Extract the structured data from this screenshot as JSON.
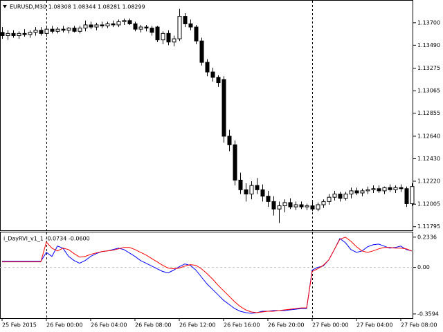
{
  "chart_data": [
    {
      "type": "candlestick",
      "title": "EURUSD,M30 1.08308 1.08344 1.08281 1.08299",
      "open": [
        1.1361,
        1.1358,
        1.136,
        1.1358,
        1.136,
        1.1359,
        1.1361,
        1.1363,
        1.136,
        1.1364,
        1.1362,
        1.1364,
        1.1363,
        1.1365,
        1.1362,
        1.1365,
        1.1368,
        1.1366,
        1.1368,
        1.1367,
        1.1369,
        1.1368,
        1.1371,
        1.1372,
        1.1369,
        1.1364,
        1.1366,
        1.1365,
        1.1366,
        1.1354,
        1.136,
        1.1352,
        1.1355,
        1.1376,
        1.1369,
        1.1366,
        1.1353,
        1.1333,
        1.1324,
        1.1319,
        1.1317,
        1.1264,
        1.1256,
        1.1223,
        1.1214,
        1.121,
        1.1218,
        1.1214,
        1.1208,
        1.1203,
        1.1196,
        1.1199,
        1.1202,
        1.1198,
        1.12,
        1.1198,
        1.1199,
        1.1196,
        1.12,
        1.1203,
        1.1207,
        1.121,
        1.1206,
        1.121,
        1.1213,
        1.1211,
        1.1213,
        1.1214,
        1.1215,
        1.1213,
        1.1216,
        1.1214,
        1.1216,
        1.1215,
        1.1201
      ],
      "high": [
        1.1366,
        1.1363,
        1.1363,
        1.1362,
        1.1364,
        1.1363,
        1.1366,
        1.1366,
        1.1366,
        1.1367,
        1.1366,
        1.1367,
        1.1366,
        1.1367,
        1.1367,
        1.1372,
        1.1371,
        1.137,
        1.1371,
        1.1371,
        1.1372,
        1.1373,
        1.1374,
        1.1374,
        1.1371,
        1.1368,
        1.1368,
        1.1367,
        1.1367,
        1.1362,
        1.1363,
        1.1358,
        1.1383,
        1.1379,
        1.1373,
        1.1368,
        1.1356,
        1.1336,
        1.1328,
        1.1321,
        1.132,
        1.127,
        1.126,
        1.123,
        1.122,
        1.1222,
        1.1225,
        1.1219,
        1.1213,
        1.1208,
        1.1203,
        1.1205,
        1.1206,
        1.1203,
        1.1203,
        1.1201,
        1.1203,
        1.1202,
        1.1205,
        1.121,
        1.1213,
        1.1212,
        1.1212,
        1.1216,
        1.1216,
        1.1215,
        1.1217,
        1.1218,
        1.1218,
        1.1217,
        1.1219,
        1.1218,
        1.1219,
        1.1217,
        1.122
      ],
      "low": [
        1.1355,
        1.1354,
        1.1356,
        1.1355,
        1.1357,
        1.1356,
        1.1358,
        1.1358,
        1.1357,
        1.136,
        1.136,
        1.1361,
        1.136,
        1.1361,
        1.136,
        1.1362,
        1.1364,
        1.1363,
        1.1365,
        1.1365,
        1.1366,
        1.1366,
        1.1368,
        1.1368,
        1.1362,
        1.1361,
        1.1362,
        1.1358,
        1.1352,
        1.135,
        1.1349,
        1.1348,
        1.1353,
        1.1366,
        1.1363,
        1.135,
        1.133,
        1.132,
        1.1315,
        1.131,
        1.1258,
        1.125,
        1.1218,
        1.121,
        1.1203,
        1.1205,
        1.121,
        1.1203,
        1.1198,
        1.119,
        1.1183,
        1.1193,
        1.1196,
        1.1195,
        1.1196,
        1.1195,
        1.1194,
        1.1194,
        1.1197,
        1.12,
        1.1204,
        1.1203,
        1.1204,
        1.1206,
        1.1209,
        1.1208,
        1.121,
        1.1211,
        1.1211,
        1.121,
        1.1212,
        1.1211,
        1.1212,
        1.1198,
        1.1199
      ],
      "close": [
        1.1358,
        1.136,
        1.1358,
        1.136,
        1.1359,
        1.1361,
        1.1363,
        1.136,
        1.1364,
        1.1362,
        1.1364,
        1.1363,
        1.1365,
        1.1362,
        1.1365,
        1.1368,
        1.1366,
        1.1368,
        1.1367,
        1.1369,
        1.1368,
        1.1371,
        1.1372,
        1.1369,
        1.1364,
        1.1366,
        1.1365,
        1.1361,
        1.1354,
        1.136,
        1.1352,
        1.1355,
        1.1376,
        1.1369,
        1.1366,
        1.1353,
        1.1333,
        1.1324,
        1.1319,
        1.1314,
        1.1264,
        1.1256,
        1.1223,
        1.1214,
        1.121,
        1.1218,
        1.1214,
        1.1208,
        1.1203,
        1.1196,
        1.1199,
        1.1202,
        1.1198,
        1.12,
        1.1198,
        1.1199,
        1.1196,
        1.12,
        1.1203,
        1.1207,
        1.121,
        1.1206,
        1.121,
        1.1213,
        1.1211,
        1.1213,
        1.1214,
        1.1215,
        1.1213,
        1.1216,
        1.1214,
        1.1216,
        1.1215,
        1.1201,
        1.1217
      ],
      "up_color": "#ffffff",
      "down_color": "#000000",
      "xlim": [
        -0.375,
        74.25
      ],
      "separators": [
        8,
        56
      ],
      "ylim": [
        1.11761,
        1.13906
      ],
      "yticks": [
        {
          "value": 1.137,
          "label": "1.13700"
        },
        {
          "value": 1.1349,
          "label": "1.13490"
        },
        {
          "value": 1.13275,
          "label": "1.13275"
        },
        {
          "value": 1.13065,
          "label": "1.13065"
        },
        {
          "value": 1.12855,
          "label": "1.12855"
        },
        {
          "value": 1.1264,
          "label": "1.12640"
        },
        {
          "value": 1.1243,
          "label": "1.12430"
        },
        {
          "value": 1.1222,
          "label": "1.12220"
        },
        {
          "value": 1.12005,
          "label": "1.12005"
        },
        {
          "value": 1.11795,
          "label": "1.11795"
        }
      ]
    },
    {
      "type": "line",
      "title": "i_DayRVI_v1_1 -0.0734 -0.0600",
      "series": [
        {
          "color": "#0000ff",
          "values": [
            0.0476,
            0.0476,
            0.0476,
            0.0476,
            0.0476,
            0.0476,
            0.0476,
            0.0476,
            0.1165,
            0.0847,
            0.1641,
            0.1482,
            0.0847,
            0.0529,
            0.0318,
            0.0529,
            0.0847,
            0.1059,
            0.1218,
            0.1271,
            0.1376,
            0.1482,
            0.1376,
            0.1112,
            0.0847,
            0.0529,
            0.0318,
            0.0106,
            -0.0106,
            -0.0318,
            -0.0424,
            -0.0212,
            0.0053,
            0.0265,
            0.0159,
            -0.0212,
            -0.0741,
            -0.1271,
            -0.1694,
            -0.2118,
            -0.2541,
            -0.2859,
            -0.3176,
            -0.3388,
            -0.3494,
            -0.3547,
            -0.3494,
            -0.3388,
            -0.3388,
            -0.3335,
            -0.3335,
            -0.3335,
            -0.3282,
            -0.3229,
            -0.3176,
            -0.3176,
            -0.0212,
            0,
            0.0106,
            0.0582,
            0.1376,
            0.2223,
            0.1906,
            0.1376,
            0.1165,
            0.1271,
            0.1588,
            0.1747,
            0.18,
            0.1641,
            0.1482,
            0.1535,
            0.1641,
            0.1376,
            0.1271
          ]
        },
        {
          "color": "#ff0000",
          "values": [
            0.0424,
            0.0424,
            0.0424,
            0.0424,
            0.0424,
            0.0424,
            0.0424,
            0.0424,
            0.1959,
            0.1482,
            0.1271,
            0.1482,
            0.1376,
            0.1059,
            0.0794,
            0.0847,
            0.1006,
            0.1112,
            0.1218,
            0.1271,
            0.1324,
            0.1429,
            0.1535,
            0.1535,
            0.1376,
            0.1165,
            0.0953,
            0.0688,
            0.0424,
            0.0159,
            -0.0053,
            -0.0106,
            -0.0053,
            0.0106,
            0.0212,
            0.0159,
            -0.0106,
            -0.0476,
            -0.09,
            -0.1376,
            -0.18,
            -0.2223,
            -0.2647,
            -0.3018,
            -0.3282,
            -0.3441,
            -0.3494,
            -0.3441,
            -0.3388,
            -0.3388,
            -0.3335,
            -0.3282,
            -0.3229,
            -0.3176,
            -0.3123,
            -0.3123,
            -0.0318,
            -0.0106,
            0.0159,
            0.0582,
            0.1376,
            0.217,
            0.2329,
            0.2012,
            0.1588,
            0.1271,
            0.1165,
            0.1271,
            0.1429,
            0.1535,
            0.1535,
            0.1482,
            0.1482,
            0.1429,
            0.1271
          ]
        }
      ],
      "xlim": [
        -0.375,
        74.25
      ],
      "separators": [
        8,
        56
      ],
      "zero_line": true,
      "ylim": [
        -0.392,
        0.27
      ],
      "yticks": [
        0.2336,
        {
          "value": 0,
          "label": "0.00"
        },
        -0.3594
      ],
      "xticks": [
        {
          "value": 0,
          "label": "25 Feb 2015"
        },
        {
          "value": 8,
          "label": "26 Feb 00:00"
        },
        {
          "value": 16,
          "label": "26 Feb 04:00"
        },
        {
          "value": 24,
          "label": "26 Feb 08:00"
        },
        {
          "value": 32,
          "label": "26 Feb 12:00"
        },
        {
          "value": 40,
          "label": "26 Feb 16:00"
        },
        {
          "value": 48,
          "label": "26 Feb 20:00"
        },
        {
          "value": 56,
          "label": "27 Feb 00:00"
        },
        {
          "value": 64,
          "label": "27 Feb 04:00"
        },
        {
          "value": 72,
          "label": "27 Feb 08:00"
        }
      ]
    }
  ]
}
